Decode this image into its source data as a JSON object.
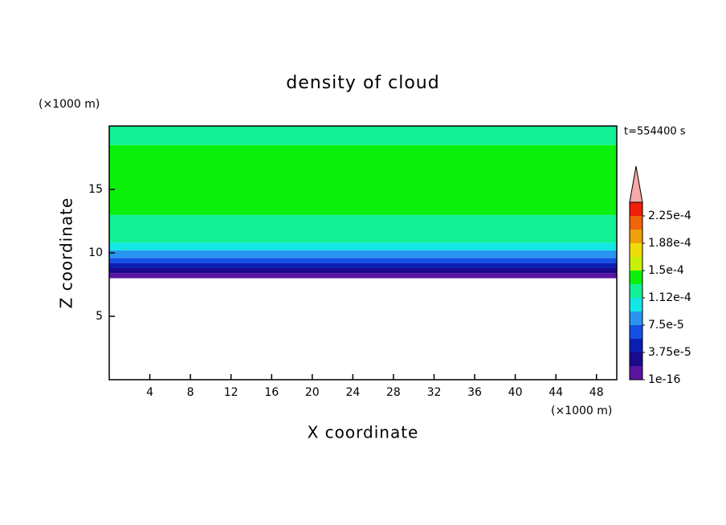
{
  "chart_data": {
    "type": "contour",
    "title": "density of cloud",
    "x_label": "X coordinate",
    "y_label": "Z coordinate",
    "x_unit": "(×1000 m)",
    "y_unit": "(×1000 m)",
    "time_label": "t=554400 s",
    "xlim": [
      0,
      50
    ],
    "ylim": [
      0,
      20
    ],
    "xticks": [
      4,
      8,
      12,
      16,
      20,
      24,
      28,
      32,
      36,
      40,
      44,
      48
    ],
    "yticks": [
      5,
      10,
      15
    ],
    "field": {
      "z": [
        0,
        8,
        8.4,
        8.8,
        9.2,
        9.6,
        10.2,
        10.8,
        13,
        18.5,
        20
      ],
      "values": [
        null,
        1e-05,
        2.8e-05,
        4.7e-05,
        6.5e-05,
        8.4e-05,
        0.000103,
        0.00012,
        0.00014,
        0.00012
      ]
    },
    "colorbar": {
      "levels": [
        1e-16,
        1.875e-05,
        3.75e-05,
        5.625e-05,
        7.5e-05,
        9.375e-05,
        0.0001125,
        0.00013125,
        0.00015,
        0.00016875,
        0.0001875,
        0.00020625,
        0.000225,
        0.00024375
      ],
      "colors": [
        "#5a14a0",
        "#1a0a8c",
        "#0a1eb4",
        "#1450e6",
        "#2896f0",
        "#14e6e6",
        "#14f096",
        "#0af00a",
        "#c8f00a",
        "#f0dc0a",
        "#f0a00a",
        "#f0640a",
        "#f01e0a"
      ],
      "over_color": "#f4a8a8",
      "ticks": [
        {
          "value": 1e-16,
          "label": "1e-16"
        },
        {
          "value": 3.75e-05,
          "label": "3.75e-5"
        },
        {
          "value": 7.5e-05,
          "label": "7.5e-5"
        },
        {
          "value": 0.0001125,
          "label": "1.12e-4"
        },
        {
          "value": 0.00015,
          "label": "1.5e-4"
        },
        {
          "value": 0.0001875,
          "label": "1.88e-4"
        },
        {
          "value": 0.000225,
          "label": "2.25e-4"
        }
      ]
    }
  }
}
